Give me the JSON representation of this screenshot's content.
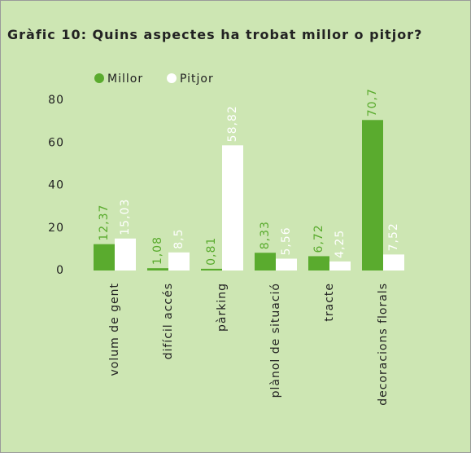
{
  "chart_data": {
    "type": "bar",
    "title": "Gràfic 10: Quins aspectes ha trobat millor o pitjor?",
    "categories": [
      "volum de gent",
      "difícil accés",
      "pàrking",
      "plànol de situació",
      "tracte",
      "decoracions florals"
    ],
    "series": [
      {
        "name": "Millor",
        "color": "#5aab2e",
        "values": [
          12.37,
          1.08,
          0.81,
          8.33,
          6.72,
          70.7
        ],
        "value_labels": [
          "12,37",
          "1,08",
          "0,81",
          "8,33",
          "6,72",
          "70,7"
        ]
      },
      {
        "name": "Pitjor",
        "color": "#ffffff",
        "values": [
          15.03,
          8.5,
          58.82,
          5.56,
          4.25,
          7.52
        ],
        "value_labels": [
          "15,03",
          "8,5",
          "58,82",
          "5,56",
          "4,25",
          "7,52"
        ]
      }
    ],
    "ylim": [
      0,
      80
    ],
    "yticks": [
      0,
      20,
      40,
      60,
      80
    ]
  }
}
